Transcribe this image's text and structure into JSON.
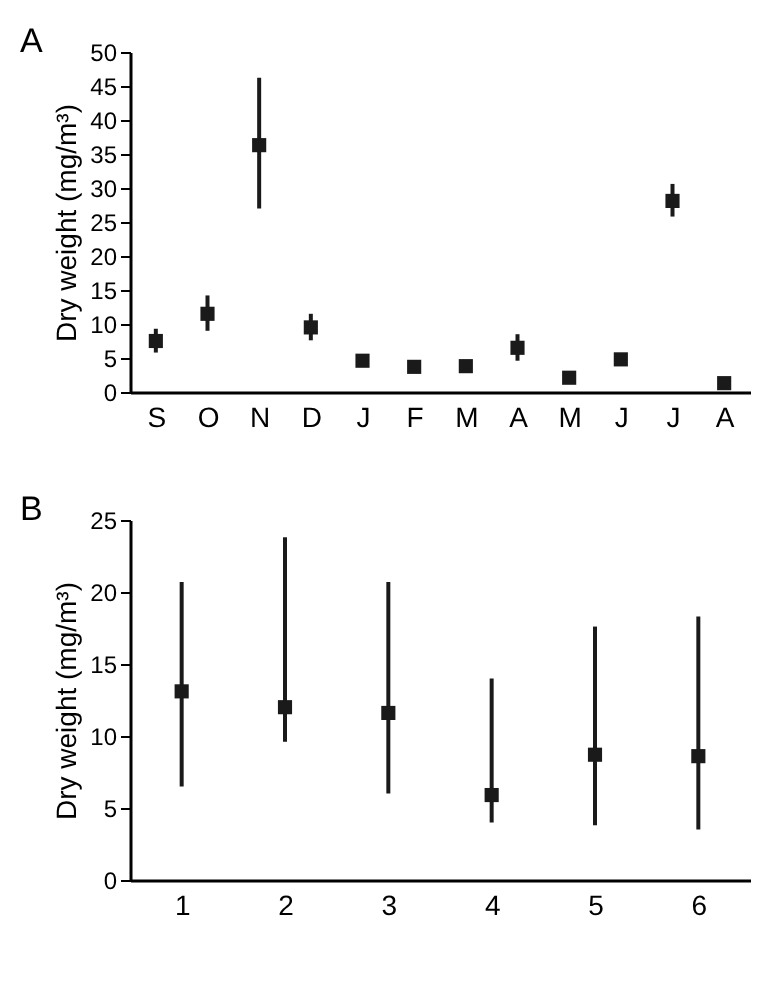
{
  "chart_data": [
    {
      "type": "scatter",
      "title": "A",
      "ylabel": "Dry weight (mg/m³)",
      "categories": [
        "S",
        "O",
        "N",
        "D",
        "J",
        "F",
        "M",
        "A",
        "M",
        "J",
        "J",
        "A"
      ],
      "values": [
        7.5,
        11.5,
        36.3,
        9.5,
        4.6,
        3.7,
        3.8,
        6.5,
        2.1,
        4.8,
        28.1,
        1.3
      ],
      "errors": [
        [
          5.8,
          9.3
        ],
        [
          9,
          14.2
        ],
        [
          27,
          46.2
        ],
        [
          7.6,
          11.5
        ],
        null,
        null,
        null,
        [
          4.6,
          8.5
        ],
        null,
        null,
        [
          25.8,
          30.6
        ],
        null
      ],
      "color": "#1a1a1a",
      "marker": "square",
      "ylim": [
        0,
        50
      ],
      "yticks": [
        0,
        5,
        10,
        15,
        20,
        25,
        30,
        35,
        40,
        45,
        50
      ]
    },
    {
      "type": "scatter",
      "title": "B",
      "ylabel": "Dry weight (mg/m³)",
      "categories": [
        "1",
        "2",
        "3",
        "4",
        "5",
        "6"
      ],
      "values": [
        13.1,
        12.0,
        11.6,
        5.9,
        8.7,
        8.6
      ],
      "errors": [
        [
          6.5,
          20.7
        ],
        [
          9.6,
          23.8
        ],
        [
          6,
          20.7
        ],
        [
          4,
          14
        ],
        [
          3.8,
          17.6
        ],
        [
          3.5,
          18.3
        ]
      ],
      "color": "#1a1a1a",
      "marker": "square",
      "ylim": [
        0,
        25
      ],
      "yticks": [
        0,
        5,
        10,
        15,
        20,
        25
      ]
    }
  ]
}
